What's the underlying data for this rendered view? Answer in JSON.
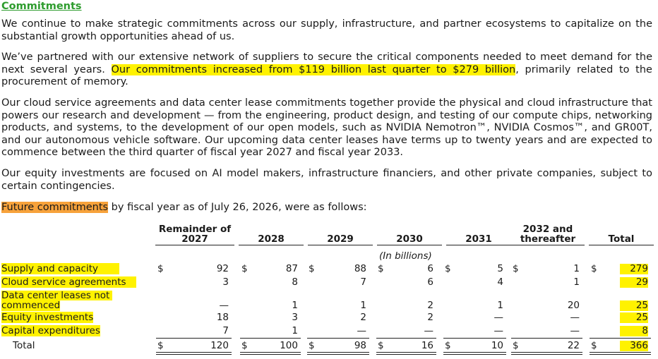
{
  "title": "Commitments",
  "para1": "We continue to make strategic commitments across our supply, infrastructure, and partner ecosystems to capitalize on the substantial growth opportunities ahead of us.",
  "para2": {
    "a": "We’ve partnered with our extensive network of suppliers to secure the critical components needed to meet demand for the next several years. ",
    "highlight": "Our commitments increased from $119 billion last quarter to $279 billion",
    "b": ", primarily related to the procurement of memory."
  },
  "para3": "Our cloud service agreements and data center lease commitments together provide the physical and cloud infrastructure that powers our research and development — from the engineering, product design, and testing of our compute chips, networking products, and systems, to the development of our open models, such as NVIDIA Nemotron™, NVIDIA Cosmos™, and GR00T, and our autonomous vehicle software. Our upcoming data center leases have terms up to twenty years and are expected to commence between the third quarter of fiscal year 2027 and fiscal year 2033.",
  "para4": "Our equity investments are focused on AI model makers, infrastructure financiers, and other private companies, subject to certain contingencies.",
  "para5": {
    "highlight": "Future commitments",
    "rest": " by fiscal year as of July 26, 2026, were as follows:"
  },
  "table": {
    "units": "(In billions)",
    "currency": "$",
    "columns": [
      {
        "line1": "Remainder of",
        "line2": "2027"
      },
      {
        "line1": "",
        "line2": "2028"
      },
      {
        "line1": "",
        "line2": "2029"
      },
      {
        "line1": "",
        "line2": "2030"
      },
      {
        "line1": "",
        "line2": "2031"
      },
      {
        "line1": "2032 and",
        "line2": "thereafter"
      },
      {
        "line1": "",
        "line2": "Total"
      }
    ],
    "rows": [
      {
        "label": "Supply and capacity",
        "values": [
          "92",
          "87",
          "88",
          "6",
          "5",
          "1",
          "279"
        ]
      },
      {
        "label": "Cloud service agreements",
        "values": [
          "3",
          "8",
          "7",
          "6",
          "4",
          "1",
          "29"
        ]
      },
      {
        "label_line1": "Data center leases not",
        "label_line2": "commenced",
        "values": [
          "—",
          "1",
          "1",
          "2",
          "1",
          "20",
          "25"
        ]
      },
      {
        "label": "Equity investments",
        "values": [
          "18",
          "3",
          "2",
          "2",
          "—",
          "—",
          "25"
        ]
      },
      {
        "label": "Capital expenditures",
        "values": [
          "7",
          "1",
          "—",
          "—",
          "—",
          "—",
          "8"
        ]
      },
      {
        "label": "Total",
        "values": [
          "120",
          "100",
          "98",
          "16",
          "10",
          "22",
          "366"
        ]
      }
    ]
  }
}
